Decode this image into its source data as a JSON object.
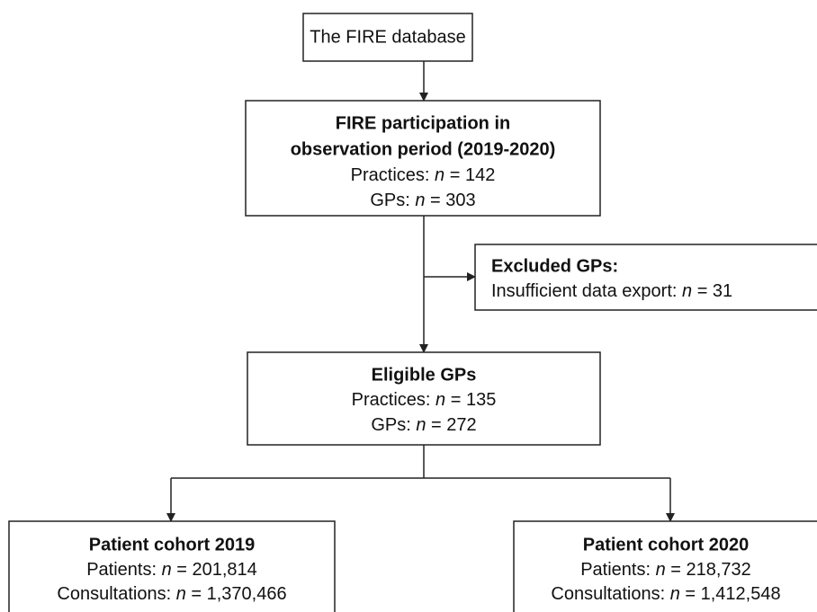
{
  "nodes": [
    {
      "title": "The FIRE database"
    },
    {
      "title": "FIRE participation in",
      "title2": "observation period (2019-2020)",
      "lines": [
        {
          "label": "Practices:",
          "symbol": "n",
          "value": "= 142"
        },
        {
          "label": "GPs:",
          "symbol": "n",
          "value": "= 303"
        }
      ]
    },
    {
      "title": "Excluded GPs:",
      "lines": [
        {
          "label": "Insufficient data export:",
          "symbol": "n",
          "value": "= 31"
        }
      ]
    },
    {
      "title": "Eligible GPs",
      "lines": [
        {
          "label": "Practices:",
          "symbol": "n",
          "value": "= 135"
        },
        {
          "label": "GPs:",
          "symbol": "n",
          "value": "= 272"
        }
      ]
    },
    {
      "title": "Patient cohort 2019",
      "lines": [
        {
          "label": "Patients:",
          "symbol": "n",
          "value": "= 201,814"
        },
        {
          "label": "Consultations:",
          "symbol": "n",
          "value": "= 1,370,466"
        }
      ]
    },
    {
      "title": "Patient cohort 2020",
      "lines": [
        {
          "label": "Patients:",
          "symbol": "n",
          "value": "= 218,732"
        },
        {
          "label": "Consultations:",
          "symbol": "n",
          "value": "= 1,412,548"
        }
      ]
    }
  ]
}
